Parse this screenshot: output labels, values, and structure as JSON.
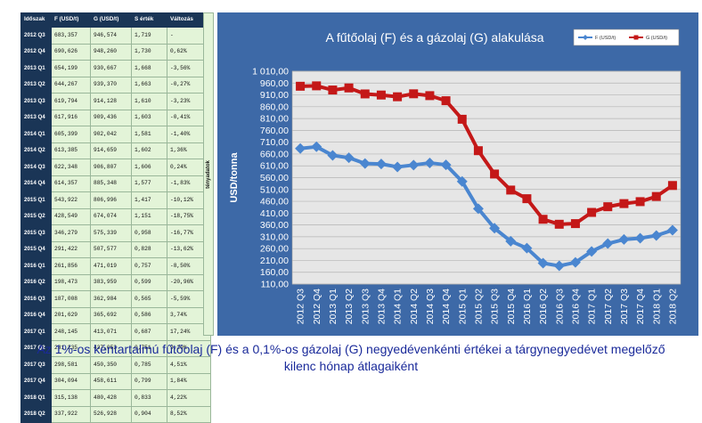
{
  "table": {
    "headers": [
      "Időszak",
      "F (USD/t)",
      "G (USD/t)",
      "S érték",
      "Változás"
    ],
    "rows": [
      [
        "2012 Q3",
        "683,357",
        "946,574",
        "1,719",
        "-"
      ],
      [
        "2012 Q4",
        "690,626",
        "948,260",
        "1,730",
        "0,62%"
      ],
      [
        "2013 Q1",
        "654,199",
        "930,667",
        "1,668",
        "-3,56%"
      ],
      [
        "2013 Q2",
        "644,267",
        "939,370",
        "1,663",
        "-0,27%"
      ],
      [
        "2013 Q3",
        "619,794",
        "914,128",
        "1,610",
        "-3,23%"
      ],
      [
        "2013 Q4",
        "617,916",
        "909,436",
        "1,603",
        "-0,41%"
      ],
      [
        "2014 Q1",
        "605,399",
        "902,042",
        "1,581",
        "-1,40%"
      ],
      [
        "2014 Q2",
        "613,385",
        "914,659",
        "1,602",
        "1,36%"
      ],
      [
        "2014 Q3",
        "622,348",
        "906,807",
        "1,606",
        "0,24%"
      ],
      [
        "2014 Q4",
        "614,357",
        "885,348",
        "1,577",
        "-1,83%"
      ],
      [
        "2015 Q1",
        "543,922",
        "806,996",
        "1,417",
        "-10,12%"
      ],
      [
        "2015 Q2",
        "428,549",
        "674,074",
        "1,151",
        "-18,75%"
      ],
      [
        "2015 Q3",
        "346,279",
        "575,339",
        "0,958",
        "-16,77%"
      ],
      [
        "2015 Q4",
        "291,422",
        "507,577",
        "0,828",
        "-13,62%"
      ],
      [
        "2016 Q1",
        "261,856",
        "471,019",
        "0,757",
        "-8,50%"
      ],
      [
        "2016 Q2",
        "198,473",
        "383,959",
        "0,599",
        "-20,96%"
      ],
      [
        "2016 Q3",
        "187,008",
        "362,984",
        "0,565",
        "-5,59%"
      ],
      [
        "2016 Q4",
        "201,629",
        "365,692",
        "0,586",
        "3,74%"
      ],
      [
        "2017 Q1",
        "248,145",
        "413,071",
        "0,687",
        "17,24%"
      ],
      [
        "2017 Q2",
        "281,235",
        "437,053",
        "0,751",
        "9,20%"
      ],
      [
        "2017 Q3",
        "298,581",
        "450,350",
        "0,785",
        "4,51%"
      ],
      [
        "2017 Q4",
        "304,094",
        "458,611",
        "0,799",
        "1,84%"
      ],
      [
        "2018 Q1",
        "315,138",
        "480,428",
        "0,833",
        "4,22%"
      ],
      [
        "2018 Q2",
        "337,922",
        "526,928",
        "0,904",
        "8,52%"
      ]
    ]
  },
  "sidebar_label": "tényadatok",
  "caption": {
    "line1": "Az 1%-os kéntartalmú fűtőolaj (F) és a 0,1%-os gázolaj (G) negyedévenkénti értékei a tárgynegyedévet megelőző",
    "line2": "kilenc hónap átlagaiként"
  },
  "chart_data": {
    "type": "line",
    "title": "A fűtőolaj (F) és a gázolaj (G) alakulása",
    "ylabel": "USD/tonna",
    "xlabel": "",
    "ylim": [
      110,
      1010
    ],
    "yticks": [
      "110,00",
      "160,00",
      "210,00",
      "260,00",
      "310,00",
      "360,00",
      "410,00",
      "460,00",
      "510,00",
      "560,00",
      "610,00",
      "660,00",
      "710,00",
      "760,00",
      "810,00",
      "860,00",
      "910,00",
      "960,00",
      "1 010,00"
    ],
    "categories": [
      "2012 Q3",
      "2012 Q4",
      "2013 Q1",
      "2013 Q2",
      "2013 Q3",
      "2013 Q4",
      "2014 Q1",
      "2014 Q2",
      "2014 Q3",
      "2014 Q4",
      "2015 Q1",
      "2015 Q2",
      "2015 Q3",
      "2015 Q4",
      "2016 Q1",
      "2016 Q2",
      "2016 Q3",
      "2016 Q4",
      "2017 Q1",
      "2017 Q2",
      "2017 Q3",
      "2017 Q4",
      "2018 Q1",
      "2018 Q2"
    ],
    "series": [
      {
        "name": "F (USD/t)",
        "color": "#4a86d0",
        "values": [
          683.357,
          690.626,
          654.199,
          644.267,
          619.794,
          617.916,
          605.399,
          613.385,
          622.348,
          614.357,
          543.922,
          428.549,
          346.279,
          291.422,
          261.856,
          198.473,
          187.008,
          201.629,
          248.145,
          281.235,
          298.581,
          304.094,
          315.138,
          337.922
        ]
      },
      {
        "name": "G (USD/t)",
        "color": "#c41818",
        "values": [
          946.574,
          948.26,
          930.667,
          939.37,
          914.128,
          909.436,
          902.042,
          914.659,
          906.807,
          885.348,
          806.996,
          674.074,
          575.339,
          507.577,
          471.019,
          383.959,
          362.984,
          365.692,
          413.071,
          437.053,
          450.35,
          458.611,
          480.428,
          526.928
        ]
      }
    ],
    "grid": true,
    "legend": "top-right",
    "background": "#3d69a7",
    "plot_background": "#e6e6e6"
  }
}
